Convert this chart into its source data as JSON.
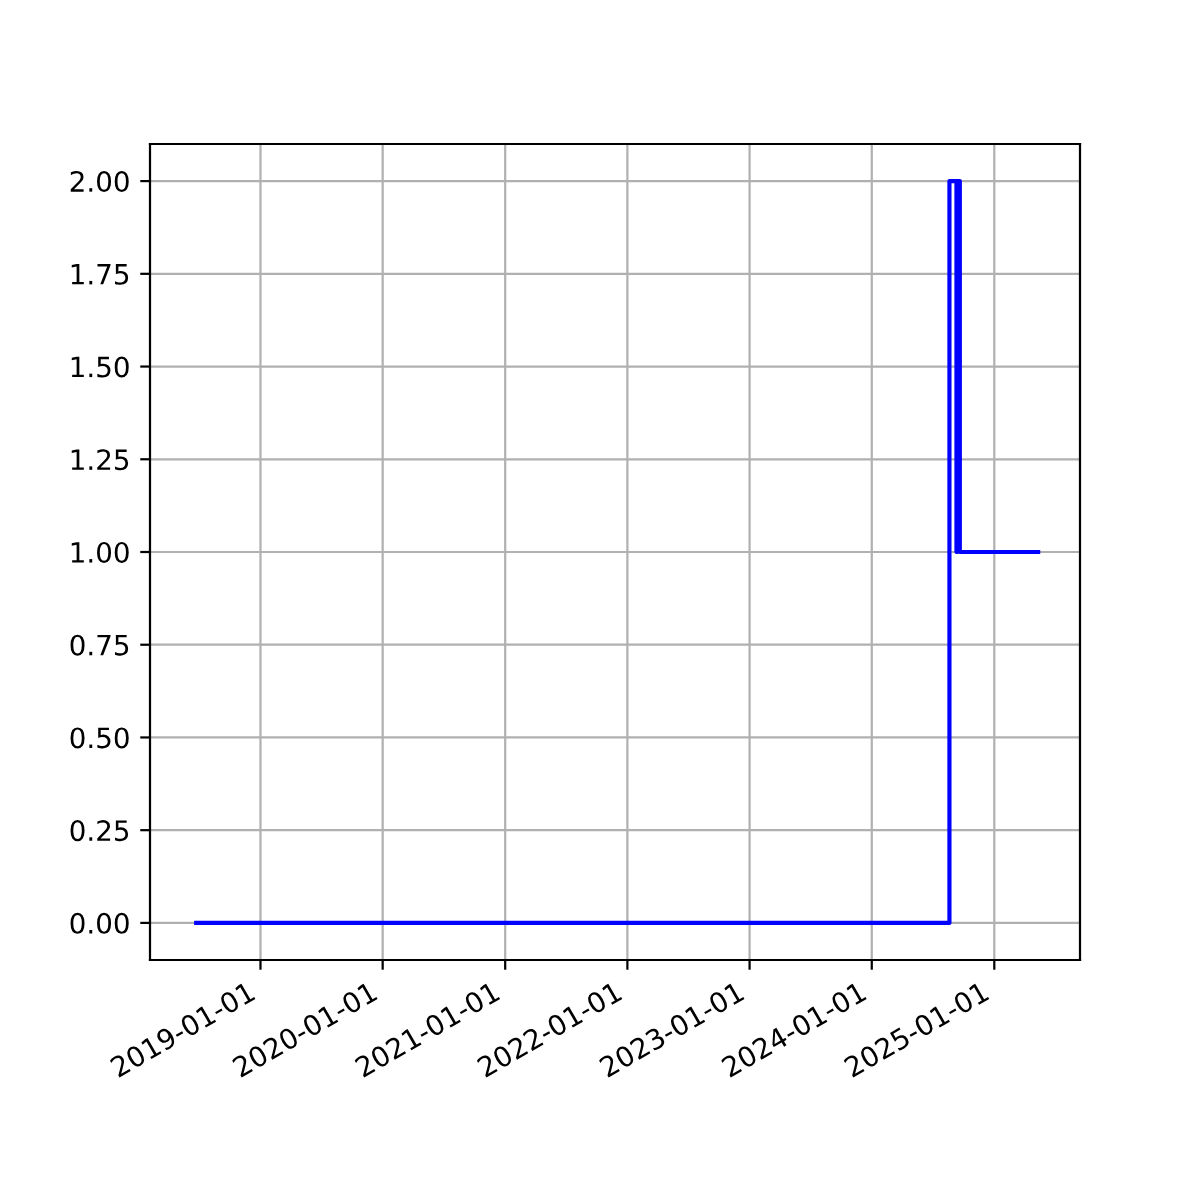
{
  "chart_data": {
    "type": "step",
    "x": [
      "2018-06-23",
      "2024-08-20",
      "2024-09-10",
      "2024-09-13",
      "2024-09-20",
      "2025-05-12"
    ],
    "series": [
      {
        "color": "#0000ff",
        "values": [
          0,
          2,
          1,
          2,
          1,
          1
        ]
      }
    ],
    "xlim": [
      "2018-02-05",
      "2025-09-14"
    ],
    "xticks": [
      "2019-01-01",
      "2020-01-01",
      "2021-01-01",
      "2022-01-01",
      "2023-01-01",
      "2024-01-01",
      "2025-01-01"
    ],
    "ylim": [
      -0.1,
      2.1
    ],
    "yticks": [
      {
        "value": 0,
        "label": "0.00"
      },
      {
        "value": 0.25,
        "label": "0.25"
      },
      {
        "value": 0.5,
        "label": "0.50"
      },
      {
        "value": 0.75,
        "label": "0.75"
      },
      {
        "value": 1,
        "label": "1.00"
      },
      {
        "value": 1.25,
        "label": "1.25"
      },
      {
        "value": 1.5,
        "label": "1.50"
      },
      {
        "value": 1.75,
        "label": "1.75"
      },
      {
        "value": 2,
        "label": "2.00"
      }
    ],
    "grid": true
  }
}
